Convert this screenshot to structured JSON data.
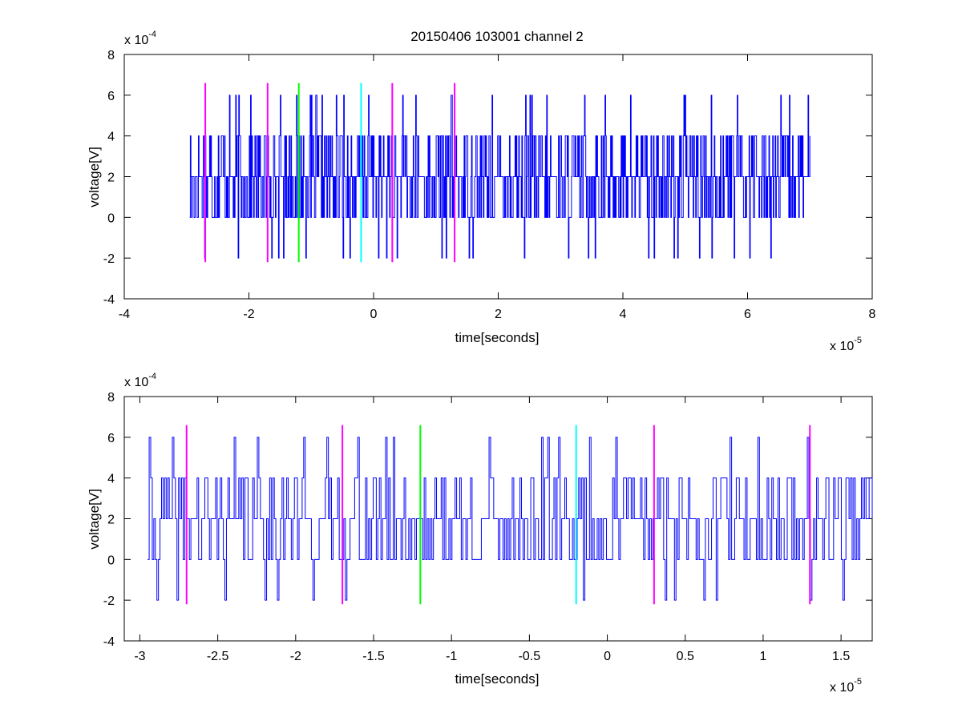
{
  "figure": {
    "title": "20150406 103001 channel 2"
  },
  "chart_data": [
    {
      "type": "line",
      "xlabel": "time[seconds]",
      "ylabel": "voltage[V]",
      "x_exponent": "x 10",
      "x_exponent_power": "-5",
      "y_exponent": "x 10",
      "y_exponent_power": "-4",
      "xlim": [
        -4,
        8
      ],
      "ylim": [
        -4,
        8
      ],
      "xticks": [
        -4,
        -2,
        0,
        2,
        4,
        6,
        8
      ],
      "yticks": [
        -4,
        -2,
        0,
        2,
        4,
        6,
        8
      ],
      "xtick_labels": [
        "-4",
        "-2",
        "0",
        "2",
        "4",
        "6",
        "8"
      ],
      "ytick_labels": [
        "-4",
        "-2",
        "0",
        "2",
        "4",
        "6",
        "8"
      ],
      "grid": false,
      "series": [
        {
          "color": "#0000ff",
          "x_range": [
            -2.95,
            7.0
          ],
          "samples": 1000,
          "seed": 17,
          "levels": [
            -2,
            0,
            2,
            4,
            6
          ],
          "level_probabilities": [
            0.03,
            0.28,
            0.42,
            0.24,
            0.03
          ]
        }
      ],
      "markers": [
        {
          "x": -2.7,
          "color": "#ff00ff",
          "y_range": [
            -2.2,
            6.6
          ]
        },
        {
          "x": -1.7,
          "color": "#ff00ff",
          "y_range": [
            -2.2,
            6.6
          ]
        },
        {
          "x": -1.2,
          "color": "#00ff00",
          "y_range": [
            -2.2,
            6.6
          ]
        },
        {
          "x": -0.2,
          "color": "#00ffff",
          "y_range": [
            -2.2,
            6.6
          ]
        },
        {
          "x": 0.3,
          "color": "#ff00ff",
          "y_range": [
            -2.2,
            6.6
          ]
        },
        {
          "x": 1.3,
          "color": "#ff00ff",
          "y_range": [
            -2.2,
            6.6
          ]
        }
      ]
    },
    {
      "type": "line",
      "xlabel": "time[seconds]",
      "ylabel": "voltage[V]",
      "x_exponent": "x 10",
      "x_exponent_power": "-5",
      "y_exponent": "x 10",
      "y_exponent_power": "-4",
      "xlim": [
        -3.1,
        1.7
      ],
      "ylim": [
        -4,
        8
      ],
      "xticks": [
        -3,
        -2.5,
        -2,
        -1.5,
        -1,
        -0.5,
        0,
        0.5,
        1,
        1.5
      ],
      "yticks": [
        -4,
        -2,
        0,
        2,
        4,
        6,
        8
      ],
      "xtick_labels": [
        "-3",
        "-2.5",
        "-2",
        "-1.5",
        "-1",
        "-0.5",
        "0",
        "0.5",
        "1",
        "1.5"
      ],
      "ytick_labels": [
        "-4",
        "-2",
        "0",
        "2",
        "4",
        "6",
        "8"
      ],
      "grid": false,
      "series": [
        {
          "color": "#0000ff",
          "x_range": [
            -2.95,
            1.7
          ],
          "samples": 470,
          "seed": 41,
          "levels": [
            -2,
            0,
            2,
            4,
            6
          ],
          "level_probabilities": [
            0.03,
            0.28,
            0.42,
            0.24,
            0.03
          ]
        }
      ],
      "markers": [
        {
          "x": -2.7,
          "color": "#ff00ff",
          "y_range": [
            -2.2,
            6.6
          ]
        },
        {
          "x": -1.7,
          "color": "#ff00ff",
          "y_range": [
            -2.2,
            6.6
          ]
        },
        {
          "x": -1.2,
          "color": "#00ff00",
          "y_range": [
            -2.2,
            6.6
          ]
        },
        {
          "x": -0.2,
          "color": "#00ffff",
          "y_range": [
            -2.2,
            6.6
          ]
        },
        {
          "x": 0.3,
          "color": "#ff00ff",
          "y_range": [
            -2.2,
            6.6
          ]
        },
        {
          "x": 1.3,
          "color": "#ff00ff",
          "y_range": [
            -2.2,
            6.6
          ]
        }
      ]
    }
  ]
}
